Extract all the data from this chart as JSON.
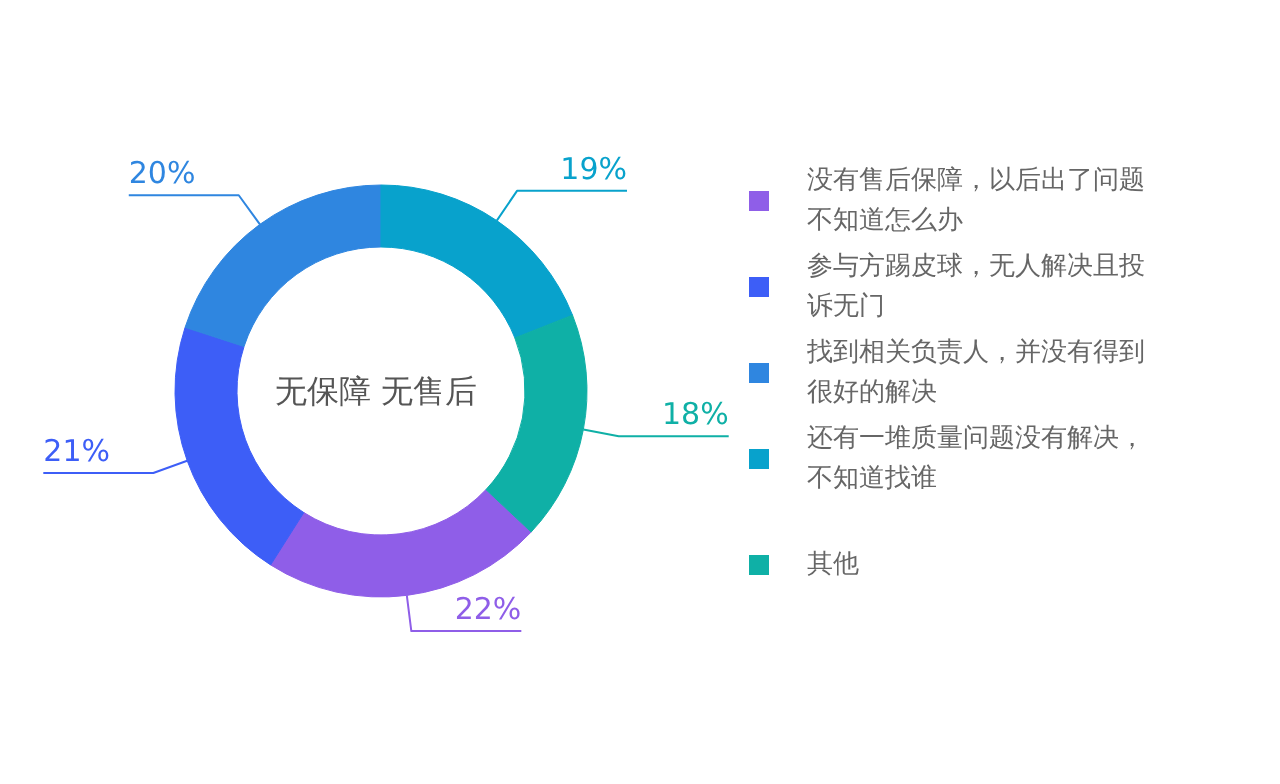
{
  "chart_data": {
    "type": "donut",
    "categories": [
      "没有售后保障，以后出了问题不知道怎么办",
      "参与方踢皮球，无人解决且投诉无门",
      "找到相关负责人，并没有得到很好的解决",
      "还有一堆质量问题没有解决，不知道找谁",
      "其他"
    ],
    "values": [
      22,
      21,
      20,
      19,
      18
    ],
    "colors": [
      "#8f5ee8",
      "#3d5ef7",
      "#2f86e0",
      "#08a2cc",
      "#0fb0a6"
    ],
    "value_labels": [
      "22%",
      "21%",
      "20%",
      "19%",
      "18%"
    ],
    "annotations": [
      "无保障  无售后"
    ],
    "legend": "right"
  }
}
